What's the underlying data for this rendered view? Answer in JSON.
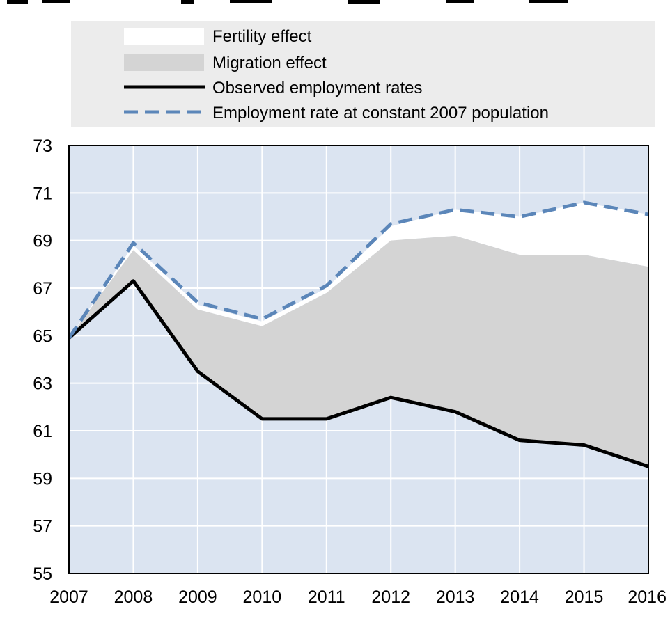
{
  "colors": {
    "plot_background": "#dbe4f1",
    "grid": "#ffffff",
    "fertility_fill": "#ffffff",
    "migration_fill": "#d4d4d4",
    "observed_line": "#000000",
    "constant_line": "#5b86b9",
    "legend_background": "#ececec"
  },
  "chart_data": {
    "type": "area",
    "title": "",
    "xlabel": "",
    "ylabel": "",
    "ylim": [
      55,
      73
    ],
    "yticks": [
      55,
      57,
      59,
      61,
      63,
      65,
      67,
      69,
      71,
      73
    ],
    "categories": [
      "2007",
      "2008",
      "2009",
      "2010",
      "2011",
      "2012",
      "2013",
      "2014",
      "2015",
      "2016"
    ],
    "legend_position": "top",
    "series": [
      {
        "name": "Fertility effect",
        "kind": "area",
        "color_key": "fertility_fill",
        "upper": [
          64.9,
          68.8,
          66.3,
          65.6,
          67.0,
          69.6,
          70.3,
          70.0,
          70.6,
          70.1
        ],
        "lower": [
          64.9,
          68.6,
          66.1,
          65.4,
          66.8,
          69.0,
          69.2,
          68.4,
          68.4,
          67.9
        ]
      },
      {
        "name": "Migration effect",
        "kind": "area",
        "color_key": "migration_fill",
        "upper": [
          64.9,
          68.6,
          66.1,
          65.4,
          66.8,
          69.0,
          69.2,
          68.4,
          68.4,
          67.9
        ],
        "lower": [
          64.9,
          67.3,
          63.5,
          61.5,
          61.5,
          62.4,
          61.8,
          60.6,
          60.4,
          59.5
        ]
      },
      {
        "name": "Observed employment rates",
        "kind": "line",
        "style": "solid",
        "color_key": "observed_line",
        "values": [
          64.9,
          67.3,
          63.5,
          61.5,
          61.5,
          62.4,
          61.8,
          60.6,
          60.4,
          59.5
        ]
      },
      {
        "name": "Employment rate at constant 2007 population",
        "kind": "line",
        "style": "dashed",
        "color_key": "constant_line",
        "values": [
          64.9,
          68.9,
          66.4,
          65.7,
          67.1,
          69.7,
          70.3,
          70.0,
          70.6,
          70.1
        ]
      }
    ]
  }
}
